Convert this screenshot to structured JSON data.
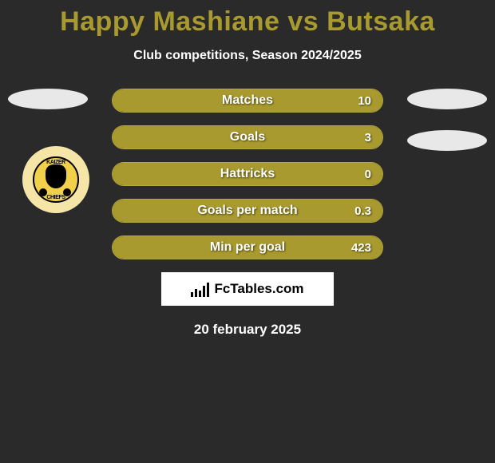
{
  "title_color": "#a89a2e",
  "title": "Happy Mashiane vs Butsaka",
  "subtitle": "Club competitions, Season 2024/2025",
  "bar_fill_color": "#a89a2e",
  "bar_border_color": "#b5a83f",
  "side_ellipse_color": "#e8e8e8",
  "stats": [
    {
      "label": "Matches",
      "value": "10",
      "fill_pct": 100
    },
    {
      "label": "Goals",
      "value": "3",
      "fill_pct": 100
    },
    {
      "label": "Hattricks",
      "value": "0",
      "fill_pct": 100
    },
    {
      "label": "Goals per match",
      "value": "0.3",
      "fill_pct": 100
    },
    {
      "label": "Min per goal",
      "value": "423",
      "fill_pct": 100
    }
  ],
  "badge": {
    "top_text": "KAIZER",
    "bottom_text": "CHIEFS",
    "bg": "#f5e6a8",
    "inner_bg": "#f2d04a"
  },
  "brand": "FcTables.com",
  "date": "20 february 2025",
  "background": "#2a2a2a"
}
